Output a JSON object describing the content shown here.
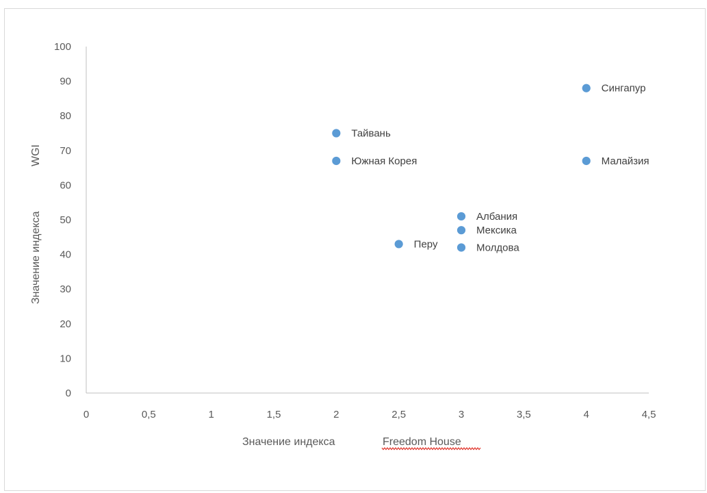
{
  "chart_data": {
    "type": "scatter",
    "title": "",
    "xlabel": {
      "part1": "Значение индекса",
      "part2": "Freedom House"
    },
    "ylabel": {
      "part1": "Значение индекса",
      "part2": "WGI"
    },
    "xlim": [
      0,
      4.5
    ],
    "ylim": [
      0,
      100
    ],
    "x_ticks": [
      "0",
      "0,5",
      "1",
      "1,5",
      "2",
      "2,5",
      "3",
      "3,5",
      "4",
      "4,5"
    ],
    "y_ticks": [
      "0",
      "10",
      "20",
      "30",
      "40",
      "50",
      "60",
      "70",
      "80",
      "90",
      "100"
    ],
    "grid": false,
    "legend": "none",
    "point_color": "#5b9bd5",
    "points": [
      {
        "label": "Сингапур",
        "x": 4,
        "y": 88
      },
      {
        "label": "Тайвань",
        "x": 2,
        "y": 75
      },
      {
        "label": "Южная Корея",
        "x": 2,
        "y": 67
      },
      {
        "label": "Малайзия",
        "x": 4,
        "y": 67
      },
      {
        "label": "Албания",
        "x": 3,
        "y": 51
      },
      {
        "label": "Мексика",
        "x": 3,
        "y": 47
      },
      {
        "label": "Перу",
        "x": 2.5,
        "y": 43
      },
      {
        "label": "Молдова",
        "x": 3,
        "y": 42
      }
    ]
  }
}
